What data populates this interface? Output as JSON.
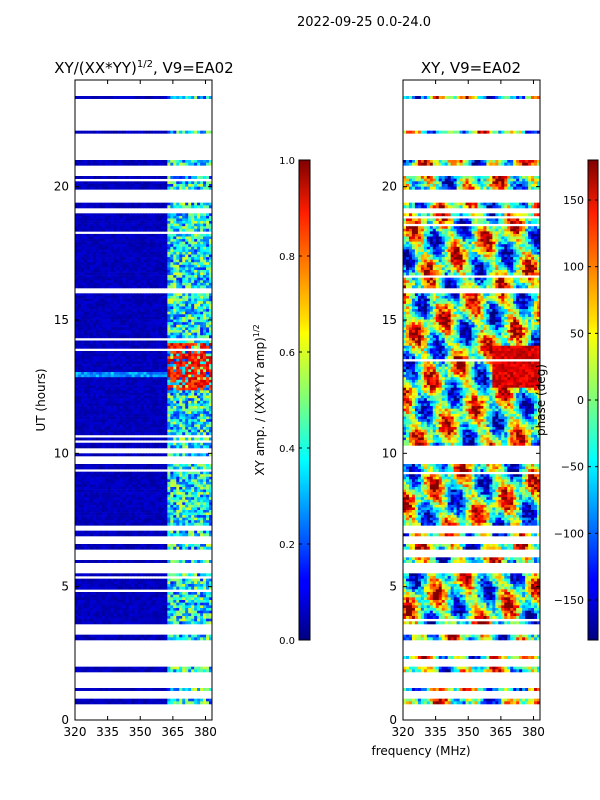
{
  "figure": {
    "suptitle": "2022-09-25 0.0-24.0",
    "shared_xlabel": "frequency (MHz)"
  },
  "colors": {
    "background": "#ffffff",
    "data_blue": "#00008f",
    "axis": "#000000"
  },
  "chart_data": [
    {
      "type": "heatmap",
      "title_main": "XY/(XX*YY)",
      "title_sup": "1/2",
      "title_tail": ", V9=EA02",
      "xlabel": "",
      "ylabel": "UT (hours)",
      "xlim": [
        320,
        383
      ],
      "ylim": [
        0,
        24
      ],
      "xticks": [
        320,
        335,
        350,
        365,
        380
      ],
      "yticks": [
        0,
        5,
        10,
        15,
        20
      ],
      "colorbar": {
        "label_main": "XY amp. / (XX*YY amp)",
        "label_sup": "1/2",
        "range": [
          0.0,
          1.0
        ],
        "ticks": [
          "0.0",
          "0.2",
          "0.4",
          "0.6",
          "0.8",
          "1.0"
        ],
        "tick_values": [
          0.0,
          0.2,
          0.4,
          0.6,
          0.8,
          1.0
        ]
      },
      "data_hour_bands": [
        [
          0.6,
          0.8
        ],
        [
          1.1,
          1.2
        ],
        [
          1.8,
          2.0
        ],
        [
          2.3,
          2.4
        ],
        [
          3.0,
          3.2
        ],
        [
          3.6,
          5.5
        ],
        [
          5.9,
          6.1
        ],
        [
          6.4,
          6.6
        ],
        [
          6.9,
          7.1
        ],
        [
          7.3,
          9.6
        ],
        [
          9.9,
          10.0
        ],
        [
          10.2,
          16.0
        ],
        [
          16.2,
          19.0
        ],
        [
          19.2,
          19.4
        ],
        [
          19.9,
          20.4
        ],
        [
          20.8,
          21.0
        ],
        [
          22.0,
          22.1
        ],
        [
          23.3,
          23.4
        ]
      ],
      "notes": "amplitude mostly ~0.0-0.1 (dark blue) below 362 MHz; 0.3-0.6 streaks above 362 MHz; values ~0.8-0.95 near 362-380 MHz at 12.5-14 UT"
    },
    {
      "type": "heatmap",
      "title_main": "XY, V9=EA02",
      "xlabel": "",
      "ylabel": "",
      "xlim": [
        320,
        383
      ],
      "ylim": [
        0,
        24
      ],
      "xticks": [
        320,
        335,
        350,
        365,
        380
      ],
      "yticks": [
        0,
        5,
        10,
        15,
        20
      ],
      "colorbar": {
        "label": "phase (deg)",
        "range": [
          -180,
          180
        ],
        "ticks": [
          "−150",
          "−100",
          "−50",
          "0",
          "50",
          "100",
          "150"
        ],
        "tick_values": [
          -150,
          -100,
          -50,
          0,
          50,
          100,
          150
        ]
      },
      "data_hour_bands": [
        [
          0.6,
          0.8
        ],
        [
          1.1,
          1.2
        ],
        [
          1.8,
          2.0
        ],
        [
          2.3,
          2.4
        ],
        [
          3.0,
          3.2
        ],
        [
          3.6,
          5.5
        ],
        [
          5.9,
          6.1
        ],
        [
          6.4,
          6.6
        ],
        [
          6.9,
          7.1
        ],
        [
          7.3,
          9.6
        ],
        [
          9.9,
          10.0
        ],
        [
          10.2,
          16.0
        ],
        [
          16.2,
          19.0
        ],
        [
          19.2,
          19.4
        ],
        [
          19.9,
          20.4
        ],
        [
          20.8,
          21.0
        ],
        [
          22.0,
          22.1
        ],
        [
          23.3,
          23.4
        ]
      ],
      "notes": "phase scattered over full -180..180 range; mostly blue/cyan (-120..-30) and red (120..180) patches"
    }
  ]
}
